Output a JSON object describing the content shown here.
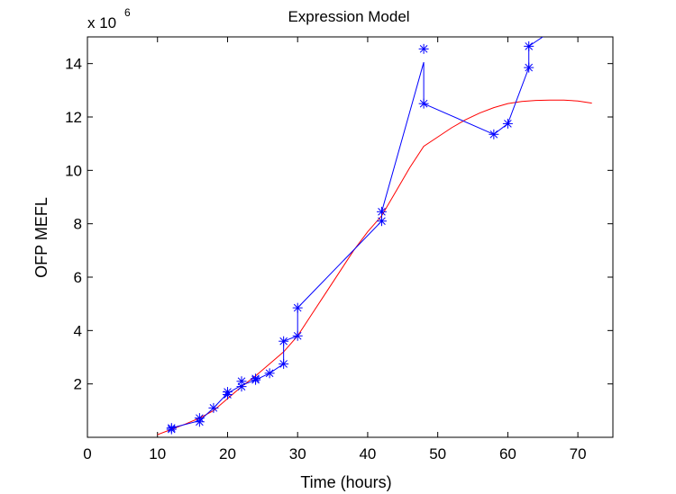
{
  "chart_data": {
    "type": "line",
    "title": "Expression Model",
    "xlabel": "Time (hours)",
    "ylabel": "OFP MEFL",
    "y_exponent_label": "x 10",
    "y_exponent_power": "6",
    "xlim": [
      0,
      75
    ],
    "ylim": [
      0,
      15
    ],
    "y_multiplier": 1000000,
    "xticks": [
      0,
      10,
      20,
      30,
      40,
      50,
      60,
      70
    ],
    "yticks": [
      2,
      4,
      6,
      8,
      10,
      12,
      14
    ],
    "grid": false,
    "series": [
      {
        "role": "observed",
        "color": "#0000ff",
        "marker": "asterisk",
        "x": [
          12,
          16,
          18,
          20,
          22,
          24,
          26,
          28,
          28,
          30,
          30,
          42,
          42,
          48,
          48,
          58,
          60,
          63,
          63,
          65
        ],
        "y": [
          0.35,
          0.62,
          1.1,
          1.65,
          1.95,
          2.15,
          2.4,
          2.75,
          3.6,
          3.8,
          4.85,
          8.1,
          8.45,
          14.05,
          12.5,
          11.35,
          11.75,
          13.85,
          14.65,
          15.0
        ],
        "marker_x": [
          12,
          12,
          16,
          16,
          18,
          20,
          20,
          22,
          22,
          24,
          24,
          26,
          28,
          28,
          30,
          30,
          42,
          42,
          48,
          48,
          58,
          60,
          63,
          63
        ],
        "marker_y": [
          0.35,
          0.3,
          0.72,
          0.58,
          1.1,
          1.7,
          1.6,
          2.1,
          1.9,
          2.2,
          2.15,
          2.4,
          2.75,
          3.6,
          3.8,
          4.85,
          8.1,
          8.45,
          14.55,
          12.5,
          11.35,
          11.75,
          13.85,
          14.65
        ]
      },
      {
        "role": "model",
        "color": "#ff0000",
        "marker": "none",
        "x": [
          10,
          12,
          14,
          16,
          18,
          20,
          22,
          24,
          26,
          28,
          30,
          32,
          34,
          36,
          38,
          40,
          42,
          44,
          46,
          48,
          50,
          52,
          54,
          56,
          58,
          60,
          62,
          64,
          66,
          68,
          70,
          72
        ],
        "y": [
          0.1,
          0.3,
          0.5,
          0.72,
          1.0,
          1.45,
          1.9,
          2.3,
          2.75,
          3.2,
          3.8,
          4.6,
          5.4,
          6.2,
          7.0,
          7.7,
          8.3,
          9.2,
          10.1,
          10.9,
          11.25,
          11.6,
          11.9,
          12.15,
          12.35,
          12.5,
          12.58,
          12.62,
          12.63,
          12.63,
          12.6,
          12.52
        ]
      }
    ]
  }
}
